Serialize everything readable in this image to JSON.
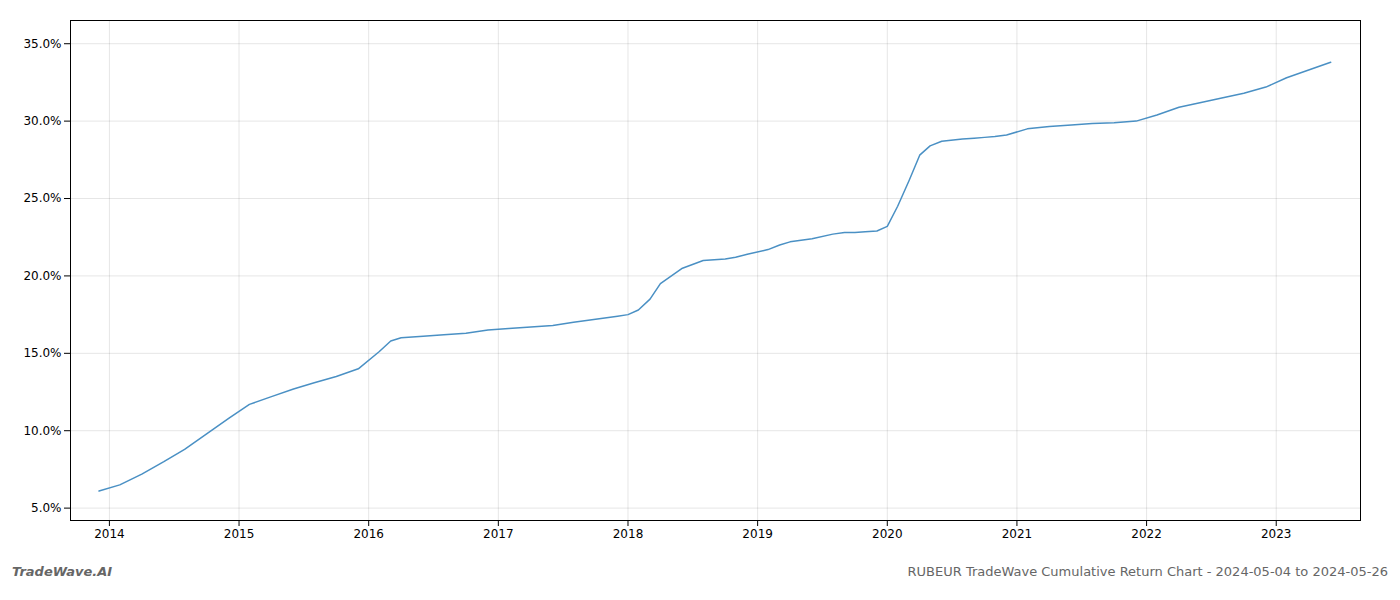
{
  "chart_data": {
    "type": "line",
    "title": "RUBEUR TradeWave Cumulative Return Chart - 2024-05-04 to 2024-05-26",
    "annotations": [
      "TradeWave.AI"
    ],
    "x": [
      2013.92,
      2014.08,
      2014.25,
      2014.42,
      2014.58,
      2014.75,
      2014.92,
      2015.08,
      2015.25,
      2015.42,
      2015.58,
      2015.75,
      2015.92,
      2016.08,
      2016.17,
      2016.25,
      2016.42,
      2016.58,
      2016.75,
      2016.92,
      2017.08,
      2017.25,
      2017.42,
      2017.58,
      2017.75,
      2017.92,
      2018.0,
      2018.08,
      2018.17,
      2018.25,
      2018.42,
      2018.58,
      2018.75,
      2018.83,
      2018.92,
      2019.08,
      2019.17,
      2019.25,
      2019.42,
      2019.58,
      2019.67,
      2019.75,
      2019.83,
      2019.92,
      2020.0,
      2020.08,
      2020.17,
      2020.25,
      2020.33,
      2020.42,
      2020.58,
      2020.67,
      2020.75,
      2020.83,
      2020.92,
      2021.08,
      2021.25,
      2021.42,
      2021.58,
      2021.75,
      2021.92,
      2022.08,
      2022.25,
      2022.42,
      2022.58,
      2022.75,
      2022.92,
      2023.08,
      2023.25,
      2023.42
    ],
    "values": [
      6.1,
      6.5,
      7.2,
      8.0,
      8.8,
      9.8,
      10.8,
      11.7,
      12.2,
      12.7,
      13.1,
      13.5,
      14.0,
      15.1,
      15.8,
      16.0,
      16.1,
      16.2,
      16.3,
      16.5,
      16.6,
      16.7,
      16.8,
      17.0,
      17.2,
      17.4,
      17.5,
      17.8,
      18.5,
      19.5,
      20.5,
      21.0,
      21.1,
      21.2,
      21.4,
      21.7,
      22.0,
      22.2,
      22.4,
      22.7,
      22.8,
      22.8,
      22.85,
      22.9,
      23.2,
      24.5,
      26.2,
      27.8,
      28.4,
      28.7,
      28.85,
      28.9,
      28.95,
      29.0,
      29.1,
      29.5,
      29.65,
      29.75,
      29.85,
      29.9,
      30.0,
      30.4,
      30.9,
      31.2,
      31.5,
      31.8,
      32.2,
      32.8,
      33.3,
      33.8
    ],
    "color": "#4a90c4",
    "xlim": [
      2013.7,
      2023.65
    ],
    "ylim": [
      4.2,
      36.5
    ],
    "xticks": [
      2014,
      2015,
      2016,
      2017,
      2018,
      2019,
      2020,
      2021,
      2022,
      2023
    ],
    "yticks": [
      {
        "value": 5.0,
        "label": "5.0%"
      },
      {
        "value": 10.0,
        "label": "10.0%"
      },
      {
        "value": 15.0,
        "label": "15.0%"
      },
      {
        "value": 20.0,
        "label": "20.0%"
      },
      {
        "value": 25.0,
        "label": "25.0%"
      },
      {
        "value": 30.0,
        "label": "30.0%"
      },
      {
        "value": 35.0,
        "label": "35.0%"
      }
    ],
    "grid": true
  }
}
